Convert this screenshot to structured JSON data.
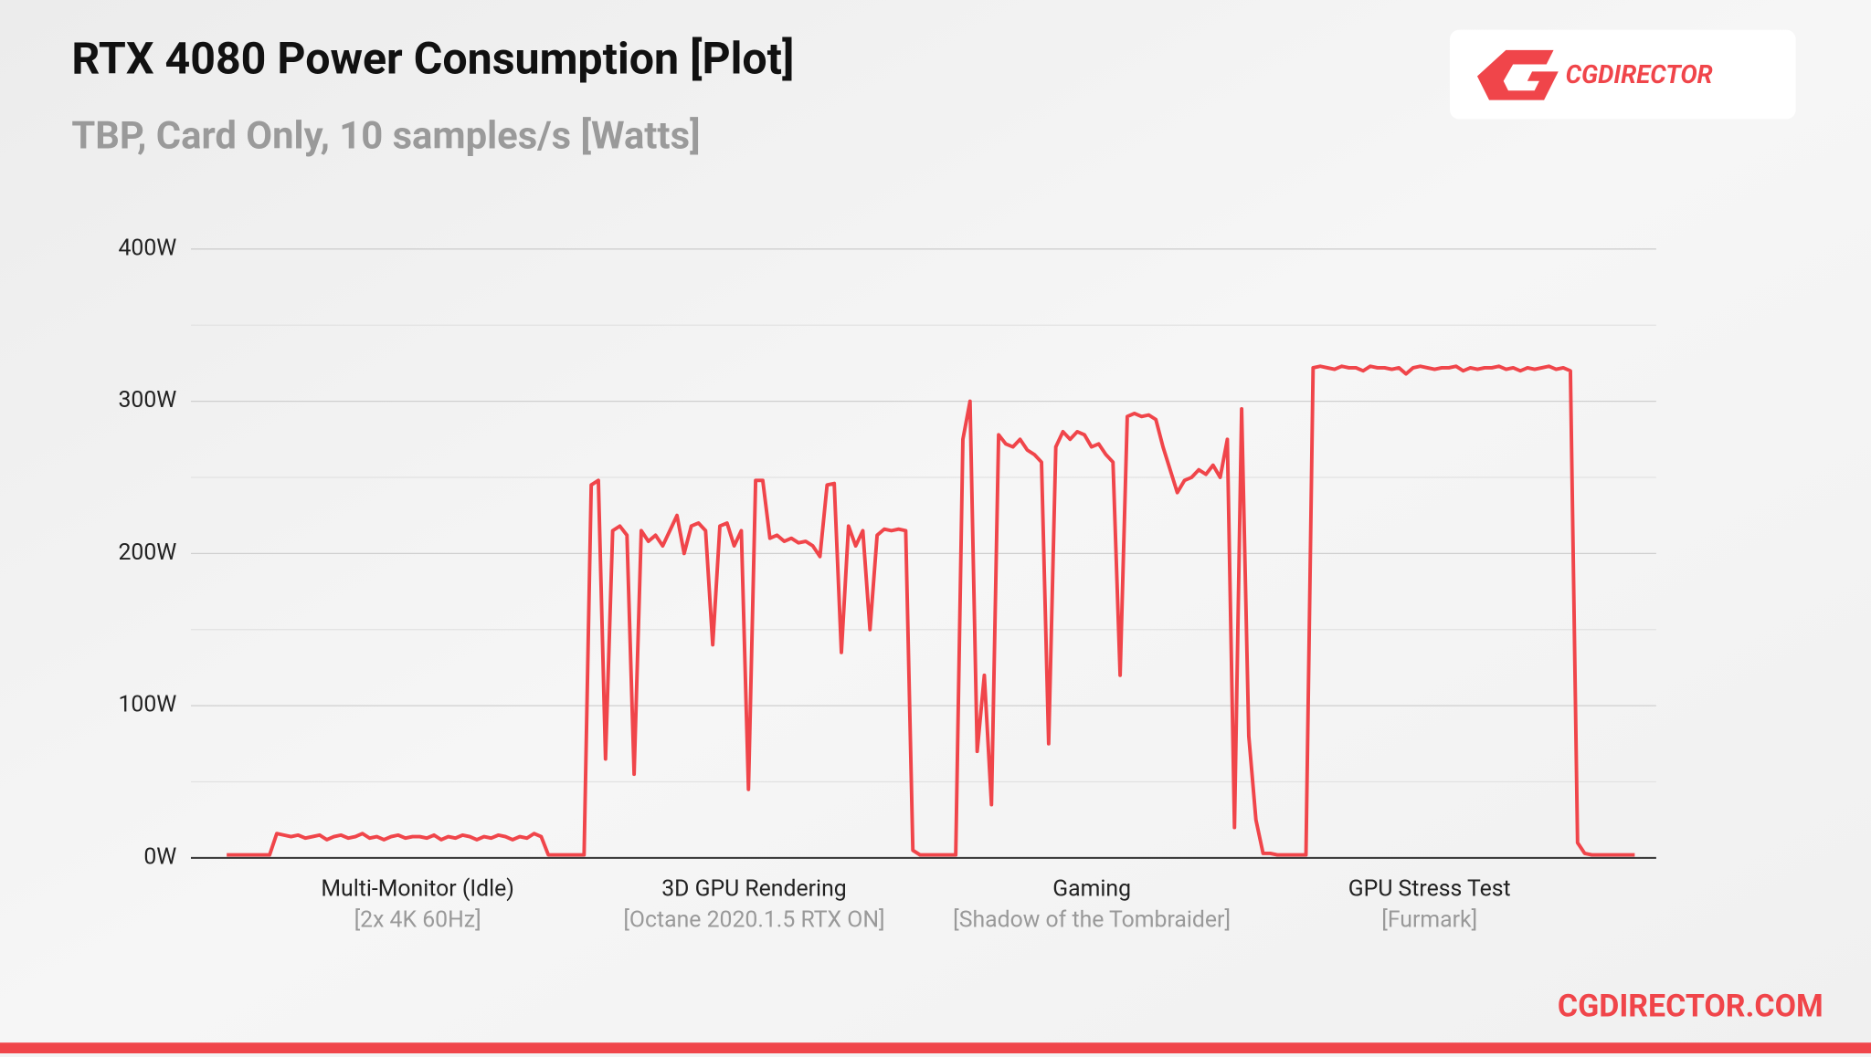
{
  "chart_data": {
    "type": "line",
    "title": "RTX 4080 Power Consumption [Plot]",
    "subtitle": "TBP, Card Only, 10 samples/s [Watts]",
    "logo": "CGDIRECTOR",
    "footer": "CGDIRECTOR.COM",
    "color": "#f0454a",
    "ylim": [
      0,
      400
    ],
    "yticks": [
      {
        "value": 0,
        "label": "0W"
      },
      {
        "value": 100,
        "label": "100W"
      },
      {
        "value": 200,
        "label": "200W"
      },
      {
        "value": 300,
        "label": "300W"
      },
      {
        "value": 400,
        "label": "400W"
      }
    ],
    "yminor": [
      50,
      150,
      250,
      350
    ],
    "grid": true,
    "annotations": [
      {
        "label": "Multi-Monitor (Idle)",
        "sublabel": "[2x 4K 60Hz]"
      },
      {
        "label": "3D GPU Rendering",
        "sublabel": "[Octane 2020.1.5 RTX ON]"
      },
      {
        "label": "Gaming",
        "sublabel": "[Shadow of the Tombraider]"
      },
      {
        "label": "GPU Stress Test",
        "sublabel": "[Furmark]"
      }
    ],
    "values": [
      2,
      2,
      2,
      2,
      2,
      2,
      2,
      16,
      15,
      14,
      15,
      13,
      14,
      15,
      12,
      14,
      15,
      13,
      14,
      16,
      13,
      14,
      12,
      14,
      15,
      13,
      14,
      14,
      13,
      15,
      12,
      14,
      13,
      15,
      14,
      12,
      14,
      13,
      15,
      14,
      12,
      14,
      13,
      16,
      14,
      2,
      2,
      2,
      2,
      2,
      2,
      245,
      248,
      65,
      215,
      218,
      212,
      55,
      215,
      208,
      212,
      205,
      215,
      225,
      200,
      218,
      220,
      215,
      140,
      218,
      220,
      205,
      215,
      45,
      248,
      248,
      210,
      212,
      208,
      210,
      207,
      208,
      205,
      198,
      245,
      246,
      135,
      218,
      205,
      215,
      150,
      212,
      216,
      215,
      216,
      215,
      5,
      2,
      2,
      2,
      2,
      2,
      2,
      275,
      300,
      70,
      120,
      35,
      278,
      272,
      270,
      275,
      268,
      265,
      260,
      75,
      270,
      280,
      275,
      280,
      278,
      270,
      272,
      265,
      260,
      120,
      290,
      292,
      290,
      291,
      288,
      270,
      255,
      240,
      248,
      250,
      255,
      252,
      258,
      250,
      275,
      20,
      295,
      80,
      25,
      3,
      3,
      2,
      2,
      2,
      2,
      2,
      322,
      323,
      322,
      321,
      323,
      322,
      322,
      320,
      323,
      322,
      322,
      321,
      322,
      318,
      322,
      323,
      322,
      321,
      322,
      322,
      323,
      320,
      322,
      321,
      322,
      322,
      323,
      321,
      322,
      320,
      322,
      321,
      322,
      323,
      321,
      322,
      320,
      10,
      3,
      2,
      2,
      2,
      2,
      2,
      2,
      2
    ]
  }
}
